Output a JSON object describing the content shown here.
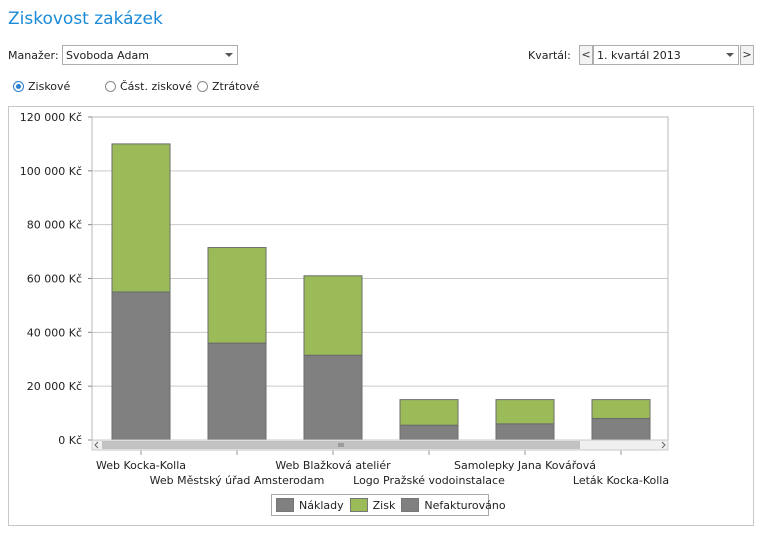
{
  "page": {
    "title": "Ziskovost zakázek"
  },
  "filters": {
    "manager_label": "Manažer:",
    "manager_value": "Svoboda Adam",
    "quarter_label": "Kvartál:",
    "quarter_value": "1. kvartál 2013",
    "prev_label": "<",
    "next_label": ">"
  },
  "options": [
    {
      "label": "Ziskové",
      "checked": true
    },
    {
      "label": "Část. ziskové",
      "checked": false
    },
    {
      "label": "Ztrátové",
      "checked": false
    }
  ],
  "colors": {
    "naklady": "#808080",
    "zisk": "#9bbb59",
    "nefakturovano": "#808080",
    "accent": "#1b8ad8"
  },
  "chart_data": {
    "type": "bar",
    "stacked": true,
    "categories": [
      "Web Kocka-Kolla",
      "Web Městský úřad Amsterodam",
      "Web Blažková ateliér",
      "Logo Pražské vodoinstalace",
      "Samolepky Jana Kovářová",
      "Leták Kocka-Kolla"
    ],
    "series": [
      {
        "name": "Náklady",
        "values": [
          55000,
          36000,
          31500,
          5500,
          6000,
          8000
        ]
      },
      {
        "name": "Zisk",
        "values": [
          55000,
          35500,
          29500,
          9500,
          9000,
          7000
        ]
      },
      {
        "name": "Nefakturováno",
        "values": [
          0,
          0,
          0,
          0,
          0,
          0
        ]
      }
    ],
    "y_ticks": [
      "0 Kč",
      "20 000 Kč",
      "40 000 Kč",
      "60 000 Kč",
      "80 000 Kč",
      "100 000 Kč",
      "120 000 Kč"
    ],
    "ylim": [
      0,
      120000
    ],
    "grid": true,
    "legend_position": "bottom"
  }
}
